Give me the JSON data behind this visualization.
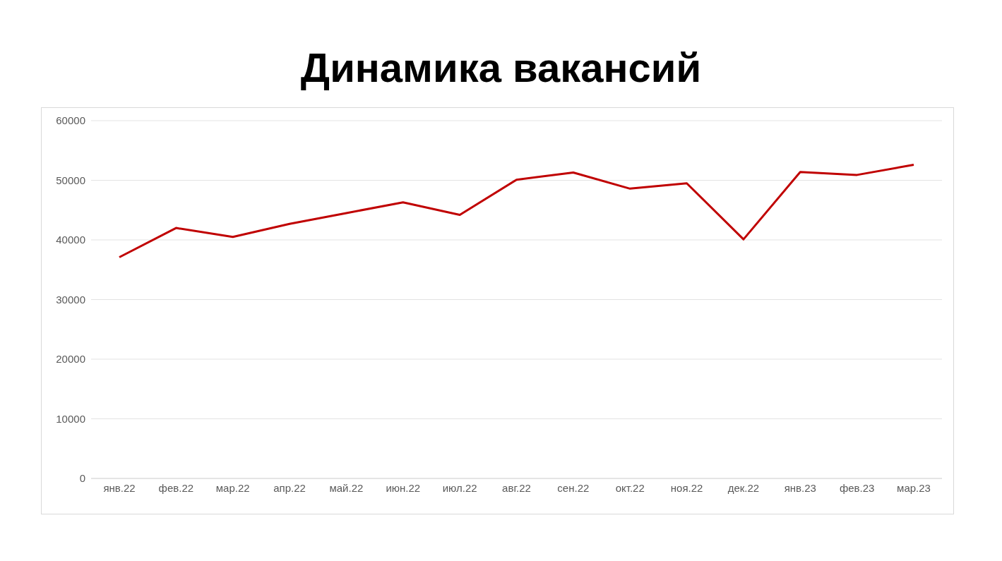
{
  "chart_data": {
    "type": "line",
    "title": "Динамика вакансий",
    "categories": [
      "янв.22",
      "фев.22",
      "мар.22",
      "апр.22",
      "май.22",
      "июн.22",
      "июл.22",
      "авг.22",
      "сен.22",
      "окт.22",
      "ноя.22",
      "дек.22",
      "янв.23",
      "фев.23",
      "мар.23"
    ],
    "series": [
      {
        "color": "#c00000",
        "values": [
          37100,
          42000,
          40500,
          42700,
          44500,
          46300,
          44200,
          50100,
          51300,
          48600,
          49500,
          40100,
          51400,
          50900,
          52600
        ]
      }
    ],
    "ylim": [
      0,
      60000
    ],
    "yticks": [
      0,
      10000,
      20000,
      30000,
      40000,
      50000,
      60000
    ],
    "grid": "y",
    "legend": false,
    "marker": "none",
    "line_style": "solid"
  }
}
